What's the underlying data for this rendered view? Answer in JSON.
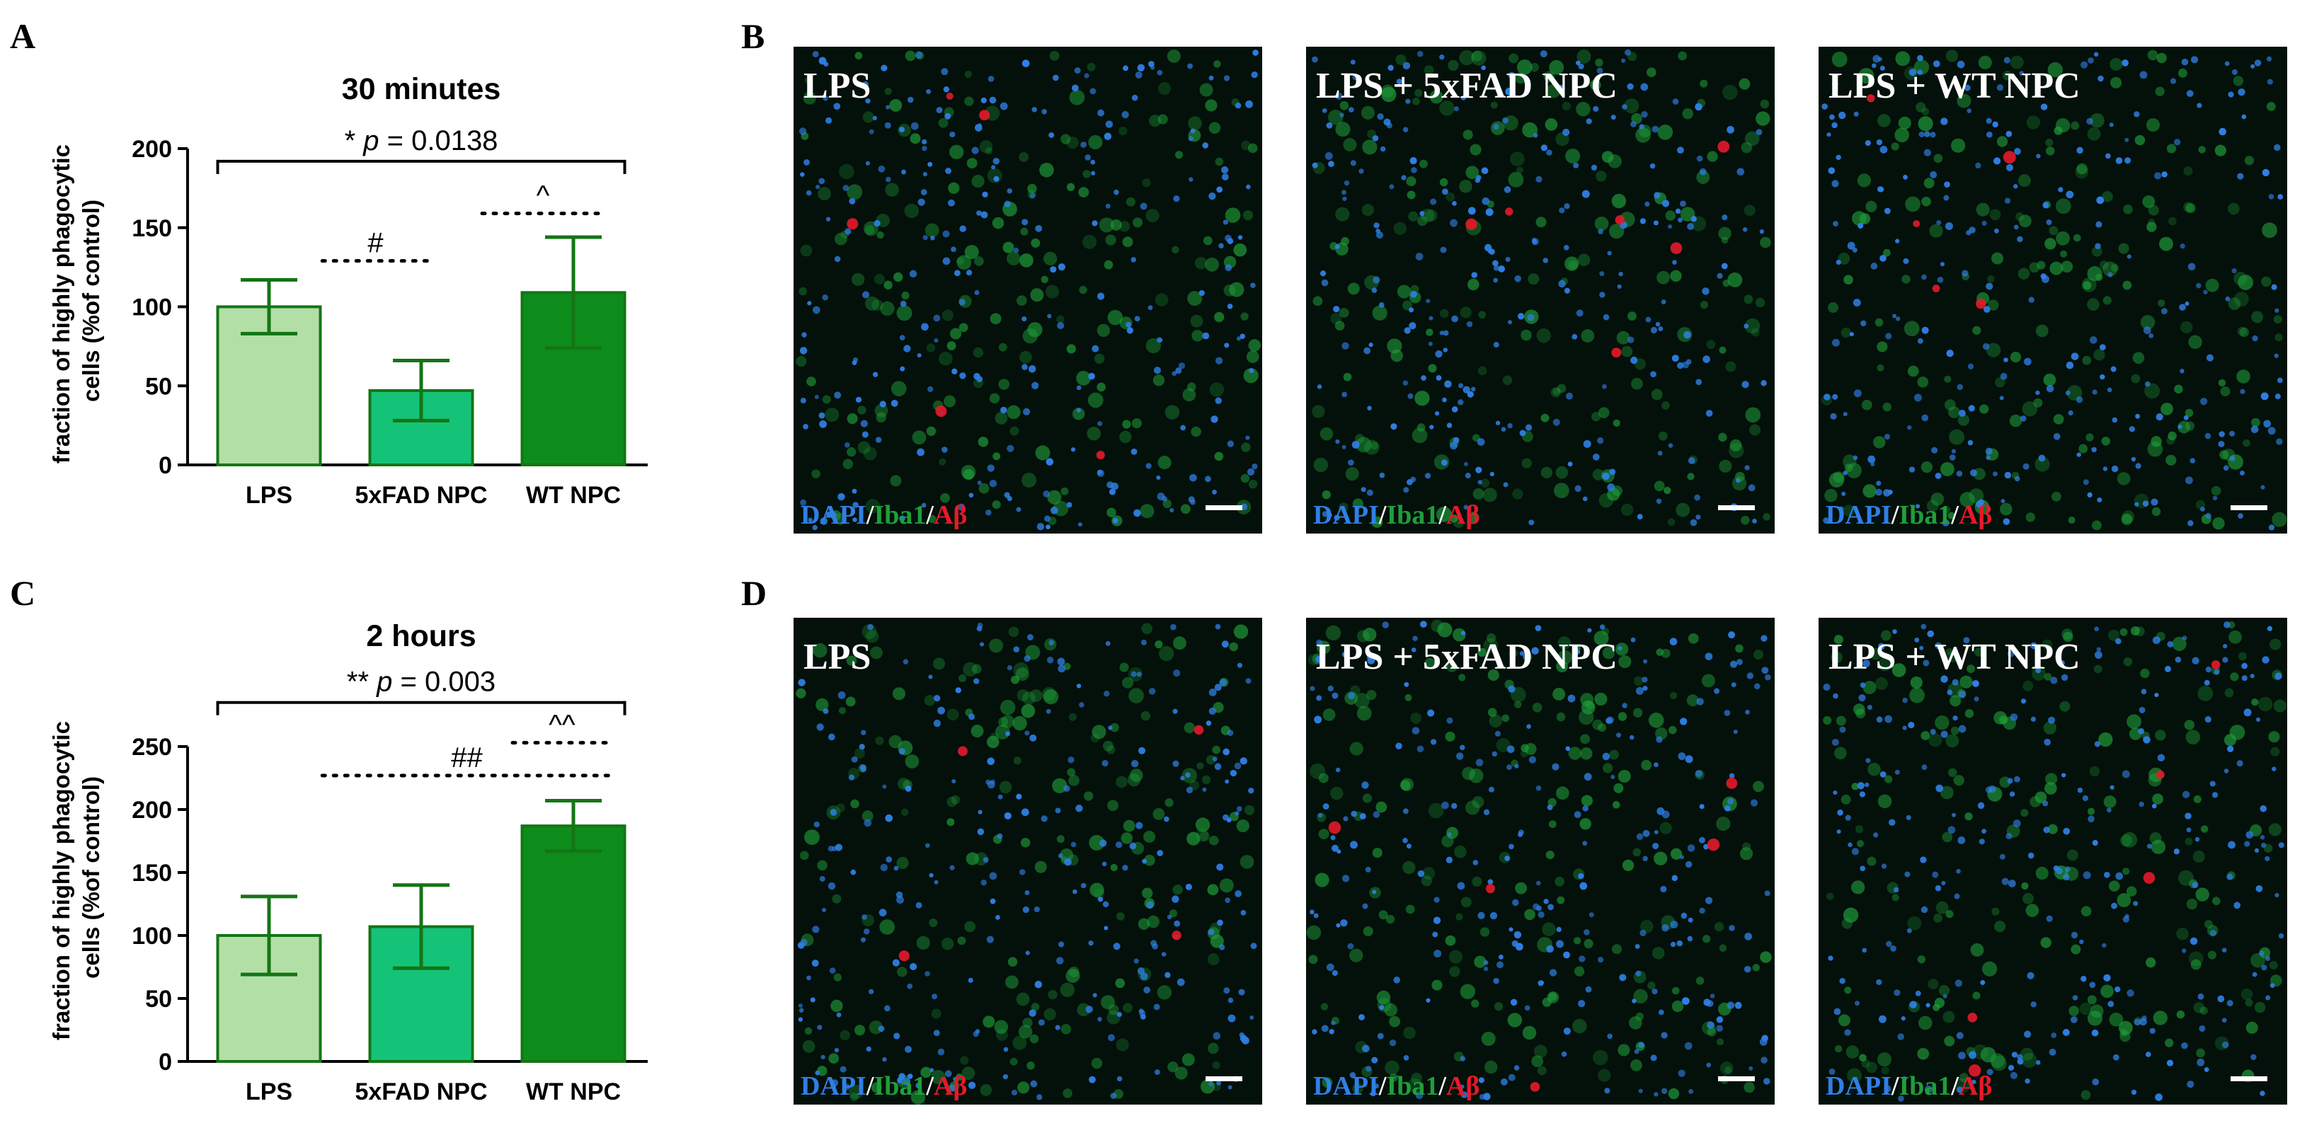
{
  "panels": {
    "A": {
      "letter": "A"
    },
    "B": {
      "letter": "B"
    },
    "C": {
      "letter": "C"
    },
    "D": {
      "letter": "D"
    }
  },
  "stain_legend": {
    "dapi": "DAPI",
    "iba1": "Iba1",
    "abeta": "Aβ",
    "sep": "/"
  },
  "micrographs": {
    "B": [
      "LPS",
      "LPS + 5xFAD NPC",
      "LPS + WT NPC"
    ],
    "D": [
      "LPS",
      "LPS + 5xFAD NPC",
      "LPS + WT NPC"
    ]
  },
  "colors": {
    "bar_fills": [
      "#b2dfa6",
      "#14c378",
      "#0d8c1b"
    ],
    "bar_stroke": "#147514",
    "dapi": "#2f7fe6",
    "iba1": "#1f9e3a",
    "abeta": "#e6192a",
    "scalebar": "#ffffff"
  },
  "chart_data": [
    {
      "type": "bar",
      "title": "30 minutes",
      "ylabel": "fraction of highly phagocytic cells (%of control)",
      "categories": [
        "LPS",
        "5xFAD NPC",
        "WT NPC"
      ],
      "values": [
        100,
        47,
        109
      ],
      "error": [
        17,
        19,
        35
      ],
      "ylim": [
        0,
        200
      ],
      "yticks": [
        0,
        50,
        100,
        150,
        200
      ],
      "ytick_labels": [
        "0",
        "50",
        "100",
        "150",
        "200"
      ],
      "annotations": [
        {
          "kind": "solid",
          "from": 0,
          "to": 2,
          "y": 192,
          "prefix": "* ",
          "italic": "p",
          "suffix": " = 0.0138"
        },
        {
          "kind": "dotted",
          "from": 0.35,
          "to": 1.05,
          "y": 129,
          "text": "#"
        },
        {
          "kind": "dotted",
          "from": 1.4,
          "to": 2.2,
          "y": 159,
          "text": "^"
        }
      ]
    },
    {
      "type": "bar",
      "title": "2 hours",
      "ylabel": "fraction of highly phagocytic cells (%of control)",
      "categories": [
        "LPS",
        "5xFAD NPC",
        "WT NPC"
      ],
      "values": [
        100,
        107,
        187
      ],
      "error": [
        31,
        33,
        20
      ],
      "ylim": [
        0,
        250
      ],
      "yticks": [
        0,
        50,
        100,
        150,
        200,
        250
      ],
      "ytick_labels": [
        "0",
        "50",
        "100",
        "150",
        "200",
        "250"
      ],
      "annotations": [
        {
          "kind": "solid",
          "from": 0,
          "to": 2,
          "y": 285,
          "prefix": "** ",
          "italic": "p",
          "suffix": " = 0.003"
        },
        {
          "kind": "dotted",
          "from": 1.6,
          "to": 2.25,
          "y": 253,
          "text": "^^"
        },
        {
          "kind": "dotted",
          "from": 0.35,
          "to": 2.25,
          "y": 227,
          "text": "##"
        }
      ]
    }
  ]
}
